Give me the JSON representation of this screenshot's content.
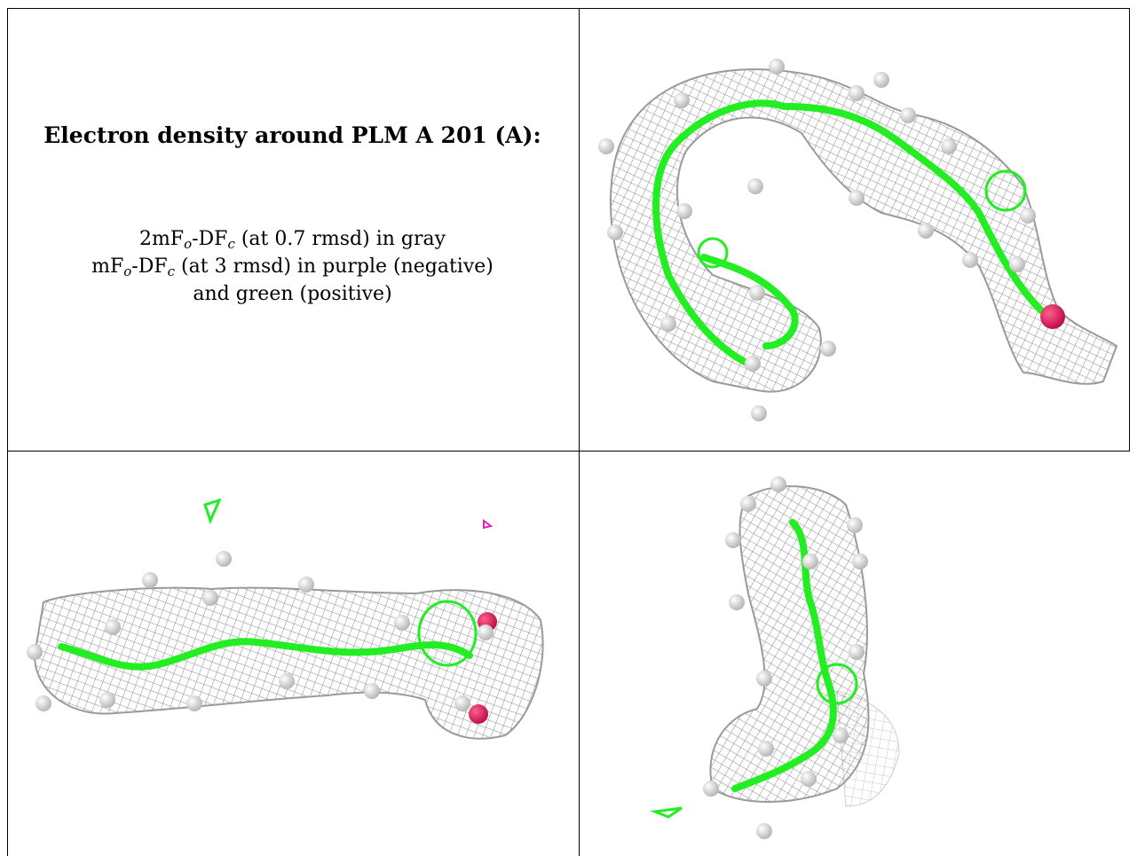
{
  "caption": {
    "title": "Electron density around PLM A 201 (A):",
    "line1": {
      "prefix": "2mF",
      "sub1": "o",
      "mid": "-DF",
      "sub2": "c",
      "suffix": " (at 0.7 rmsd) in gray"
    },
    "line2": {
      "prefix": "mF",
      "sub1": "o",
      "mid": "-DF",
      "sub2": "c",
      "suffix": " (at 3 rmsd) in purple (negative)"
    },
    "line3": "and green (positive)"
  },
  "colors": {
    "mesh_gray": "#8a8a8a",
    "mesh_light": "#c8c8c8",
    "positive_green": "#22ee22",
    "negative_purple": "#e020c0",
    "oxygen_red": "#e0205a",
    "hydrogen_white": "#f0f0f0"
  },
  "panels": [
    {
      "name": "view-top-right",
      "image": "electron-density-view-1"
    },
    {
      "name": "view-bottom-left",
      "image": "electron-density-view-2"
    },
    {
      "name": "view-bottom-right",
      "image": "electron-density-view-3"
    }
  ]
}
